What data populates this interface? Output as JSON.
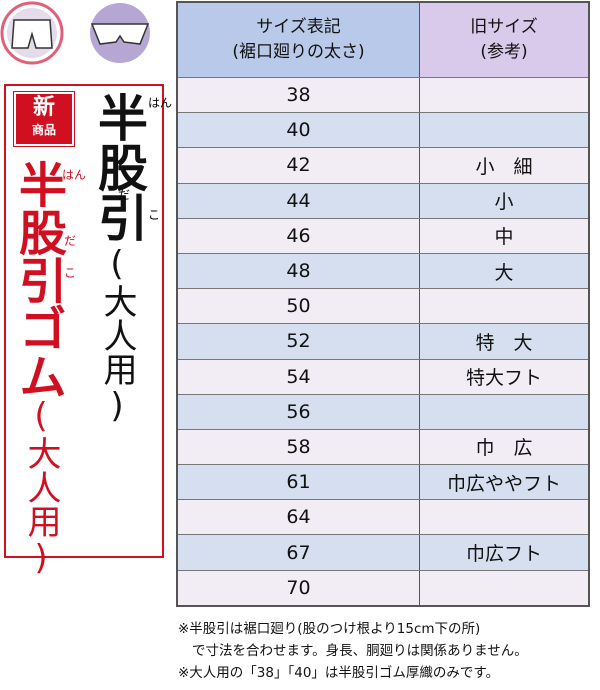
{
  "badge": {
    "top": "新",
    "bottom": "商品"
  },
  "product1": {
    "title": "半股引",
    "ruby": [
      "はん",
      "だ",
      "こ"
    ],
    "subtitle": "(大人用)"
  },
  "product2": {
    "title": "半股引ゴム",
    "ruby": [
      "はん",
      "だ",
      "こ"
    ],
    "subtitle": "(大人用)"
  },
  "table": {
    "header": [
      [
        "サイズ表記",
        "(裾口廻りの太さ)"
      ],
      [
        "旧サイズ",
        "(参考)"
      ]
    ],
    "rows": [
      {
        "size": "38"
      },
      {
        "size": "40"
      },
      {
        "size": "42",
        "old": "小　細"
      },
      {
        "size": "44",
        "old": "小"
      },
      {
        "size": "46",
        "old": "中"
      },
      {
        "size": "48",
        "old": "大"
      },
      {
        "size": "50"
      },
      {
        "size": "52",
        "old": "特　大"
      },
      {
        "size": "54",
        "old": "特大フト"
      },
      {
        "size": "56"
      },
      {
        "size": "58",
        "old": "巾　広"
      },
      {
        "size": "61",
        "old": "巾広ややフト"
      },
      {
        "size": "64"
      },
      {
        "size": "67",
        "old": "巾広フト"
      },
      {
        "size": "70"
      }
    ]
  },
  "notes": [
    "※半股引は裾口廻り(股のつけ根より15cm下の所)",
    "で寸法を合わせます。身長、胴廻りは関係ありません。",
    "※大人用の「38」「40」は半股引ゴム厚織のみです。"
  ]
}
